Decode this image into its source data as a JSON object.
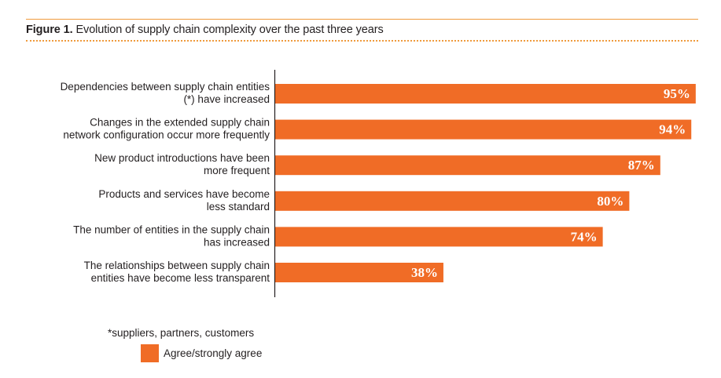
{
  "figure": {
    "label": "Figure 1.",
    "title": "Evolution of supply chain complexity over the past three years"
  },
  "footnote": "*suppliers, partners, customers",
  "colors": {
    "bar": "#f06c26",
    "rule": "#ef9a3d",
    "axis": "#231f20"
  },
  "chart_data": {
    "type": "bar",
    "orientation": "horizontal",
    "title": "Evolution of supply chain complexity over the past three years",
    "xlabel": "",
    "ylabel": "",
    "xlim": [
      0,
      100
    ],
    "grid": false,
    "legend_position": "bottom-left",
    "categories": [
      [
        "Dependencies between supply chain entities",
        "(*) have increased"
      ],
      [
        "Changes in the extended supply chain",
        "network configuration occur more frequently"
      ],
      [
        "New product introductions have been",
        "more frequent"
      ],
      [
        "Products and services have become",
        "less standard"
      ],
      [
        "The number of entities in the supply chain",
        "has increased"
      ],
      [
        "The relationships between supply chain",
        "entities have become less transparent"
      ]
    ],
    "series": [
      {
        "name": "Agree/strongly agree",
        "values": [
          95,
          94,
          87,
          80,
          74,
          38
        ],
        "labels": [
          "95%",
          "94%",
          "87%",
          "80%",
          "74%",
          "38%"
        ]
      }
    ]
  }
}
